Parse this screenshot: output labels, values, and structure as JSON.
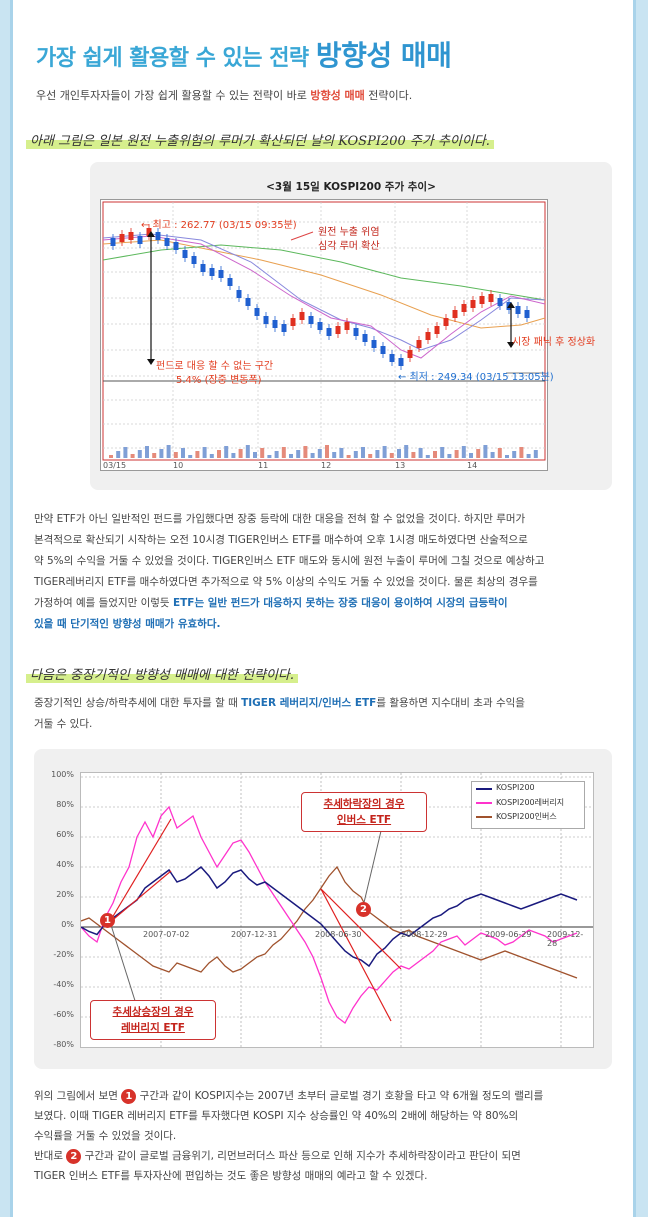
{
  "title": {
    "prefix": "가장 쉽게 활용할 수 있는 전략",
    "emphasis": "방향성 매매"
  },
  "intro": {
    "before": "우선 개인투자자들이 가장 쉽게 활용할 수 있는 전략이 바로",
    "highlight": "방향성 매매",
    "after": "전략이다."
  },
  "section1_heading": "아래 그림은 일본 원전 누출위험의 루머가 확산되던 날의 KOSPI200 주가 추이이다.",
  "chart1": {
    "title": "<3월 15일 KOSPI200 주가 추이>",
    "high_label": "← 최고 : 262.77 (03/15 09:35분)",
    "low_label": "← 최저 : 249.34 (03/15 13:05분)",
    "rumor_label_1": "원전 누출 위염",
    "rumor_label_2": "심각 루머 확산",
    "fund_label_1": "펀드로 대응 할 수 없는 구간",
    "fund_label_2": "5.4% (장중 변동폭)",
    "panic_label": "시장 패닉 후 정상화",
    "x_ticks": [
      "03/15",
      "10",
      "11",
      "12",
      "13",
      "14"
    ]
  },
  "para1": {
    "line1": "만약 ETF가 아닌 일반적인 펀드를 가입했다면 장중 등락에 대한 대응을 전혀 할 수 없었을 것이다. 하지만 루머가",
    "line2": "본격적으로 확산되기 시작하는 오전 10시경 TIGER인버스 ETF를 매수하여 오후 1시경 매도하였다면 산술적으로",
    "line3": "약 5%의 수익을 거둘 수 있었을 것이다. TIGER인버스 ETF 매도와 동시에 원전 누출이 루머에 그칠 것으로 예상하고",
    "line4": "TIGER레버리지 ETF를 매수하였다면 추가적으로 약 5% 이상의 수익도 거둘 수 있었을 것이다. 물론 최상의 경우를",
    "line5_plain": "가정하여 예를 들었지만 이렇듯",
    "line5_blue": "ETF는 일반 펀드가 대응하지 못하는 장중 대응이 용이하여 시장의 급등락이",
    "line6_blue": "있을 때 단기적인 방향성 매매가 유효하다."
  },
  "section2_heading": "다음은 중장기적인 방향성 매매에 대한 전략이다.",
  "para2": {
    "before": "중장기적인 상승/하락추세에 대한 투자를 할 때",
    "blue": "TIGER 레버리지/인버스 ETF",
    "after": "를 활용하면 지수대비 초과 수익을",
    "line2": "거둘 수 있다."
  },
  "chart2": {
    "y_ticks": [
      "100%",
      "80%",
      "60%",
      "40%",
      "20%",
      "0%",
      "-20%",
      "-40%",
      "-60%",
      "-80%"
    ],
    "x_ticks": [
      "2007-07-02",
      "2007-12-31",
      "2008-06-30",
      "2008-12-29",
      "2009-06-29",
      "2009-12-28"
    ],
    "legend": [
      "KOSPI200",
      "KOSPI200레버리지",
      "KOSPI200인버스"
    ],
    "callout_bear_1": "추세하락장의 경우",
    "callout_bear_2": "인버스 ETF",
    "callout_bull_1": "추세상승장의 경우",
    "callout_bull_2": "레버리지 ETF",
    "badge1": "1",
    "badge2": "2",
    "colors": {
      "kospi": "#1a1a7e",
      "leverage": "#ff33cc",
      "inverse": "#a0522d"
    }
  },
  "para3": {
    "badge1": "1",
    "badge2": "2",
    "l1_before": "위의 그림에서 보면",
    "l1_after": "구간과 같이 KOSPI지수는 2007년 초부터 글로벌 경기 호황을 타고 약 6개월 정도의 랠리를",
    "l2": "보였다. 이때 TIGER 레버리지 ETF를 투자했다면 KOSPI 지수 상승률인 약 40%의 2배에 해당하는 약 80%의",
    "l3": "수익률을 거둘 수 있었을 것이다.",
    "l4_before": "반대로",
    "l4_after": "구간과 같이 글로벌 금융위기, 리먼브러더스 파산 등으로 인해 지수가 추세하락장이라고 판단이 되면",
    "l5": "TIGER 인버스 ETF를 투자자산에 편입하는 것도 좋은 방향성 매매의 예라고 할 수 있겠다."
  }
}
